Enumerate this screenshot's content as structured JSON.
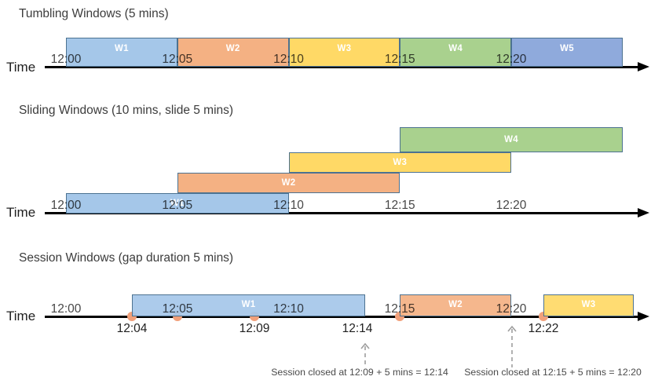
{
  "colors": {
    "window_blue": "#A5C7E9",
    "window_orange": "#F4B183",
    "window_yellow": "#FFD966",
    "window_green": "#A9D18E",
    "window_periwinkle": "#8FAADC",
    "box_border": "#4C7291",
    "event_dot": "#F1A07A",
    "axis_black": "#000000",
    "dashed_arrow_gray": "#9E9E9E"
  },
  "sections": [
    {
      "id": "tumbling",
      "title": "Tumbling Windows (5 mins)",
      "axis_label": "Time",
      "windows": [
        {
          "label": "W1",
          "start": "12:00",
          "end": "12:05",
          "color": "window_blue"
        },
        {
          "label": "W2",
          "start": "12:05",
          "end": "12:10",
          "color": "window_orange"
        },
        {
          "label": "W3",
          "start": "12:10",
          "end": "12:15",
          "color": "window_yellow"
        },
        {
          "label": "W4",
          "start": "12:15",
          "end": "12:20",
          "color": "window_green"
        },
        {
          "label": "W5",
          "start": "12:20",
          "end": "",
          "color": "window_periwinkle"
        }
      ],
      "ticks": [
        "12:00",
        "12:05",
        "12:10",
        "12:15",
        "12:20"
      ]
    },
    {
      "id": "sliding",
      "title": "Sliding Windows (10 mins, slide 5 mins)",
      "axis_label": "Time",
      "windows": [
        {
          "label": "W1",
          "start": "12:00",
          "end": "12:10",
          "color": "window_blue",
          "row": 0
        },
        {
          "label": "W2",
          "start": "12:05",
          "end": "12:15",
          "color": "window_orange",
          "row": 1
        },
        {
          "label": "W3",
          "start": "12:10",
          "end": "12:20",
          "color": "window_yellow",
          "row": 2
        },
        {
          "label": "W4",
          "start": "12:15",
          "end": "",
          "color": "window_green",
          "row": 3
        }
      ],
      "ticks": [
        "12:00",
        "12:05",
        "12:10",
        "12:15",
        "12:20"
      ]
    },
    {
      "id": "session",
      "title": "Session Windows (gap duration 5 mins)",
      "axis_label": "Time",
      "windows": [
        {
          "label": "W1",
          "start": "12:04",
          "end": "12:14",
          "color": "window_blue"
        },
        {
          "label": "W2",
          "start": "12:15",
          "end": "12:20",
          "color": "window_orange"
        },
        {
          "label": "W3",
          "start": "12:22",
          "end": "",
          "color": "window_yellow"
        }
      ],
      "ticks": [
        "12:00",
        "12:05",
        "12:10",
        "12:15",
        "12:20"
      ],
      "events": [
        {
          "time": "12:04",
          "dot": true,
          "label_below": true
        },
        {
          "time": "12:05",
          "dot": true,
          "label_below": false
        },
        {
          "time": "12:09",
          "dot": true,
          "label_below": true
        },
        {
          "time": "12:14",
          "dot": false,
          "label_below": true
        },
        {
          "time": "12:15",
          "dot": true,
          "label_below": false
        },
        {
          "time": "12:22",
          "dot": true,
          "label_below": true
        }
      ],
      "annotations": [
        {
          "text": "Session closed at 12:09 + 5 mins = 12:14"
        },
        {
          "text": "Session closed at 12:15 + 5 mins = 12:20"
        }
      ]
    }
  ]
}
